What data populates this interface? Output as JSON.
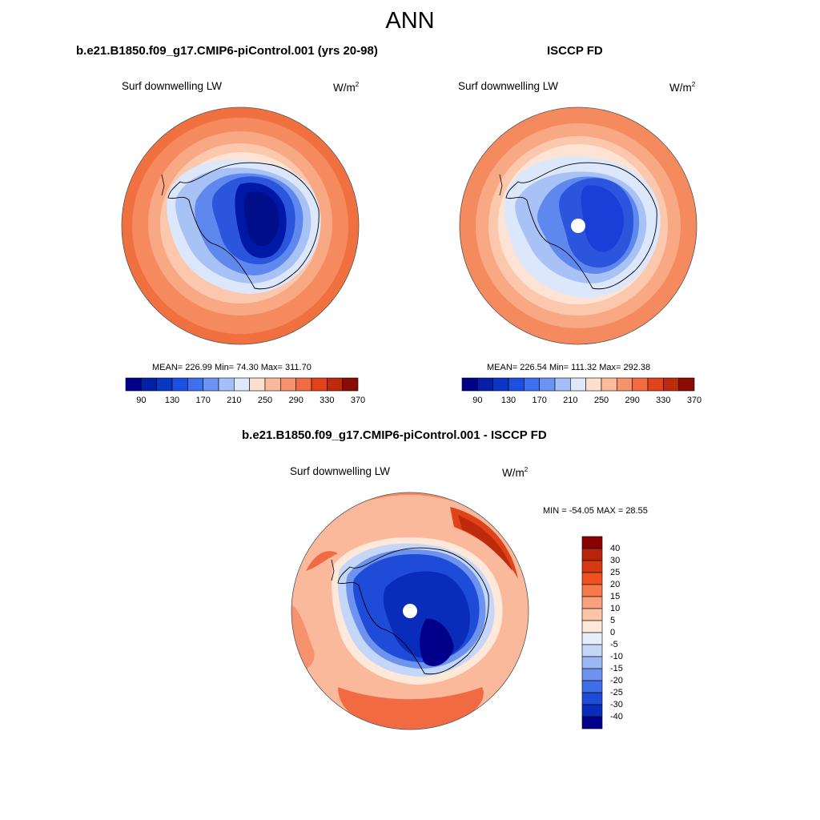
{
  "title": "ANN",
  "panels": [
    {
      "title": "b.e21.B1850.f09_g17.CMIP6-piControl.001 (yrs 20-98)",
      "variable": "Surf downwelling LW",
      "units": "W/m",
      "units_exp": "2",
      "stats": "MEAN= 226.99  Min=  74.30  Max= 311.70",
      "mean": 226.99,
      "min": 74.3,
      "max": 311.7
    },
    {
      "title": "ISCCP FD",
      "variable": "Surf downwelling LW",
      "units": "W/m",
      "units_exp": "2",
      "stats": "MEAN= 226.54  Min= 111.32  Max= 292.38",
      "mean": 226.54,
      "min": 111.32,
      "max": 292.38
    },
    {
      "title": "b.e21.B1850.f09_g17.CMIP6-piControl.001 - ISCCP FD",
      "variable": "Surf downwelling LW",
      "units": "W/m",
      "units_exp": "2",
      "stats": "MIN = -54.05 MAX =  28.55",
      "min": -54.05,
      "max": 28.55
    }
  ],
  "colorbar_abs": {
    "tick_labels": [
      "90",
      "130",
      "170",
      "210",
      "250",
      "290",
      "330",
      "370"
    ],
    "colors": [
      "#00008b",
      "#0420a6",
      "#0a36c4",
      "#1a4fe0",
      "#3d70ef",
      "#6d93f2",
      "#a4bff7",
      "#dde9fb",
      "#fde0cc",
      "#fbb99b",
      "#f7926e",
      "#f26a42",
      "#e2421a",
      "#bd2a0c",
      "#8b0c04"
    ]
  },
  "colorbar_diff": {
    "tick_labels": [
      "40",
      "30",
      "25",
      "20",
      "15",
      "10",
      "5",
      "0",
      "-5",
      "-10",
      "-15",
      "-20",
      "-25",
      "-30",
      "-40"
    ],
    "colors": [
      "#8b0000",
      "#b8240a",
      "#d63a12",
      "#f0521e",
      "#f77a4e",
      "#f9a07e",
      "#fcc5a8",
      "#fde8da",
      "#e6eefb",
      "#c5d7f8",
      "#9ab8f3",
      "#6d93ee",
      "#3f6ee6",
      "#1e4bd8",
      "#0a2cbb",
      "#00008b"
    ]
  },
  "colors": {
    "outline": "#000000",
    "pole_mask": "#ffffff"
  }
}
